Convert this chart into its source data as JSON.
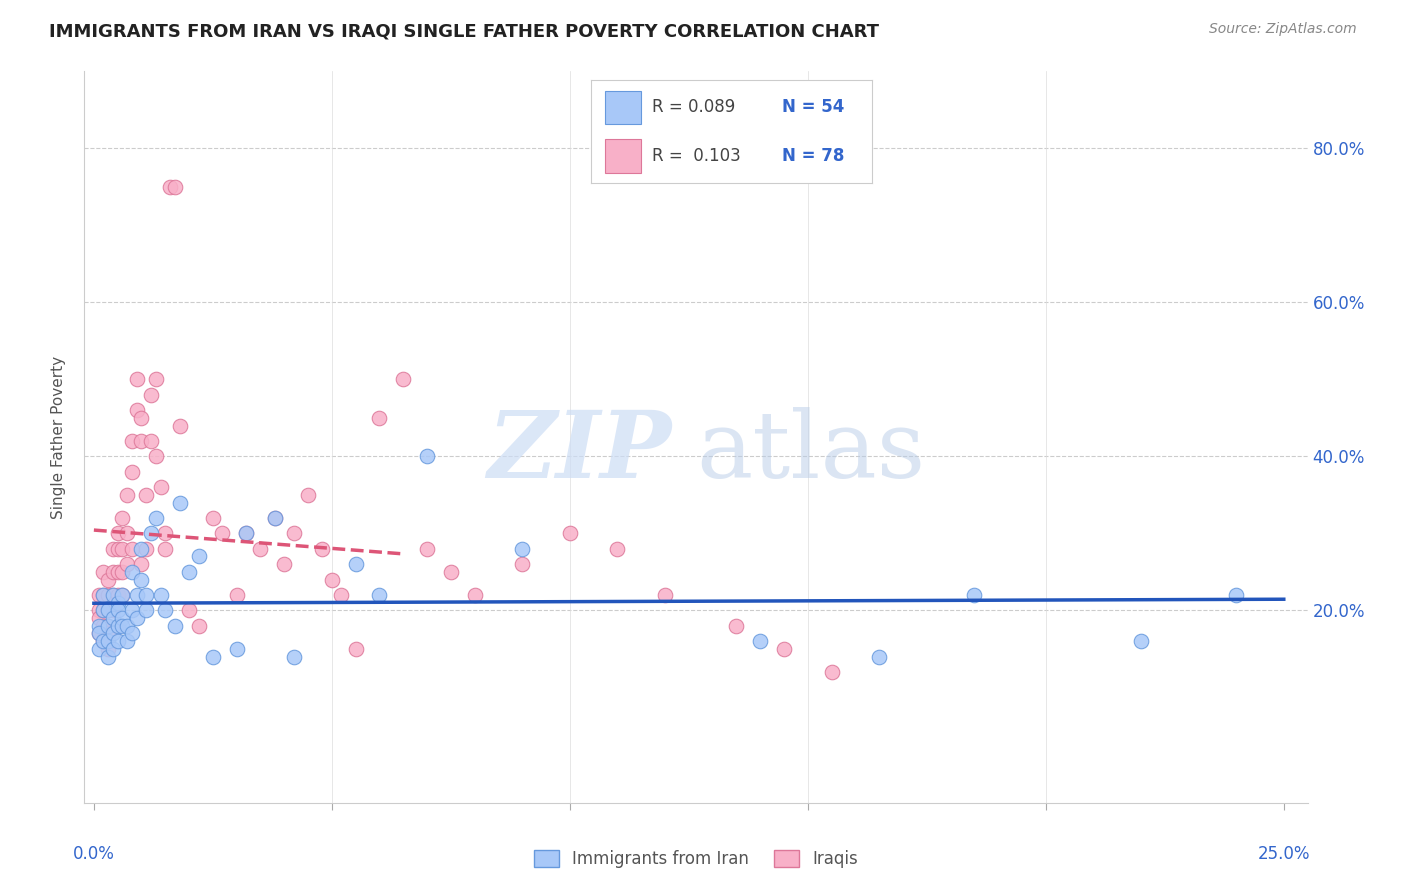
{
  "title": "IMMIGRANTS FROM IRAN VS IRAQI SINGLE FATHER POVERTY CORRELATION CHART",
  "source": "Source: ZipAtlas.com",
  "ylabel": "Single Father Poverty",
  "right_yticks": [
    "80.0%",
    "60.0%",
    "40.0%",
    "20.0%"
  ],
  "right_ytick_vals": [
    0.8,
    0.6,
    0.4,
    0.2
  ],
  "color_iran": "#a8c8f8",
  "color_iraq": "#f8b0c8",
  "color_iran_edge": "#6699dd",
  "color_iraq_edge": "#dd7799",
  "color_text_blue": "#3366cc",
  "color_trendline_iran": "#2255bb",
  "color_trendline_iraq": "#dd5577",
  "xlim_min": -0.002,
  "xlim_max": 0.255,
  "ylim_min": -0.05,
  "ylim_max": 0.9,
  "iran_x": [
    0.001,
    0.001,
    0.001,
    0.002,
    0.002,
    0.002,
    0.003,
    0.003,
    0.003,
    0.003,
    0.004,
    0.004,
    0.004,
    0.004,
    0.005,
    0.005,
    0.005,
    0.005,
    0.006,
    0.006,
    0.006,
    0.007,
    0.007,
    0.008,
    0.008,
    0.008,
    0.009,
    0.009,
    0.01,
    0.01,
    0.011,
    0.011,
    0.012,
    0.013,
    0.014,
    0.015,
    0.017,
    0.018,
    0.02,
    0.022,
    0.025,
    0.03,
    0.032,
    0.038,
    0.042,
    0.055,
    0.06,
    0.07,
    0.09,
    0.14,
    0.165,
    0.185,
    0.22,
    0.24
  ],
  "iran_y": [
    0.18,
    0.17,
    0.15,
    0.2,
    0.22,
    0.16,
    0.14,
    0.18,
    0.2,
    0.16,
    0.22,
    0.19,
    0.17,
    0.15,
    0.21,
    0.18,
    0.2,
    0.16,
    0.19,
    0.18,
    0.22,
    0.18,
    0.16,
    0.25,
    0.2,
    0.17,
    0.22,
    0.19,
    0.28,
    0.24,
    0.22,
    0.2,
    0.3,
    0.32,
    0.22,
    0.2,
    0.18,
    0.34,
    0.25,
    0.27,
    0.14,
    0.15,
    0.3,
    0.32,
    0.14,
    0.26,
    0.22,
    0.4,
    0.28,
    0.16,
    0.14,
    0.22,
    0.16,
    0.22
  ],
  "iraq_x": [
    0.001,
    0.001,
    0.001,
    0.001,
    0.002,
    0.002,
    0.002,
    0.002,
    0.002,
    0.003,
    0.003,
    0.003,
    0.003,
    0.003,
    0.003,
    0.004,
    0.004,
    0.004,
    0.004,
    0.005,
    0.005,
    0.005,
    0.005,
    0.005,
    0.006,
    0.006,
    0.006,
    0.006,
    0.007,
    0.007,
    0.007,
    0.008,
    0.008,
    0.008,
    0.009,
    0.009,
    0.01,
    0.01,
    0.01,
    0.011,
    0.011,
    0.012,
    0.012,
    0.013,
    0.013,
    0.014,
    0.015,
    0.015,
    0.016,
    0.017,
    0.018,
    0.02,
    0.022,
    0.025,
    0.027,
    0.03,
    0.032,
    0.035,
    0.038,
    0.04,
    0.042,
    0.045,
    0.048,
    0.05,
    0.052,
    0.055,
    0.06,
    0.065,
    0.07,
    0.075,
    0.08,
    0.09,
    0.1,
    0.11,
    0.12,
    0.135,
    0.145,
    0.155
  ],
  "iraq_y": [
    0.22,
    0.2,
    0.19,
    0.17,
    0.25,
    0.22,
    0.2,
    0.18,
    0.16,
    0.24,
    0.22,
    0.2,
    0.18,
    0.17,
    0.15,
    0.28,
    0.25,
    0.22,
    0.2,
    0.3,
    0.28,
    0.25,
    0.22,
    0.18,
    0.32,
    0.28,
    0.25,
    0.22,
    0.35,
    0.3,
    0.26,
    0.42,
    0.38,
    0.28,
    0.5,
    0.46,
    0.45,
    0.42,
    0.26,
    0.35,
    0.28,
    0.48,
    0.42,
    0.5,
    0.4,
    0.36,
    0.3,
    0.28,
    0.75,
    0.75,
    0.44,
    0.2,
    0.18,
    0.32,
    0.3,
    0.22,
    0.3,
    0.28,
    0.32,
    0.26,
    0.3,
    0.35,
    0.28,
    0.24,
    0.22,
    0.15,
    0.45,
    0.5,
    0.28,
    0.25,
    0.22,
    0.26,
    0.3,
    0.28,
    0.22,
    0.18,
    0.15,
    0.12
  ]
}
